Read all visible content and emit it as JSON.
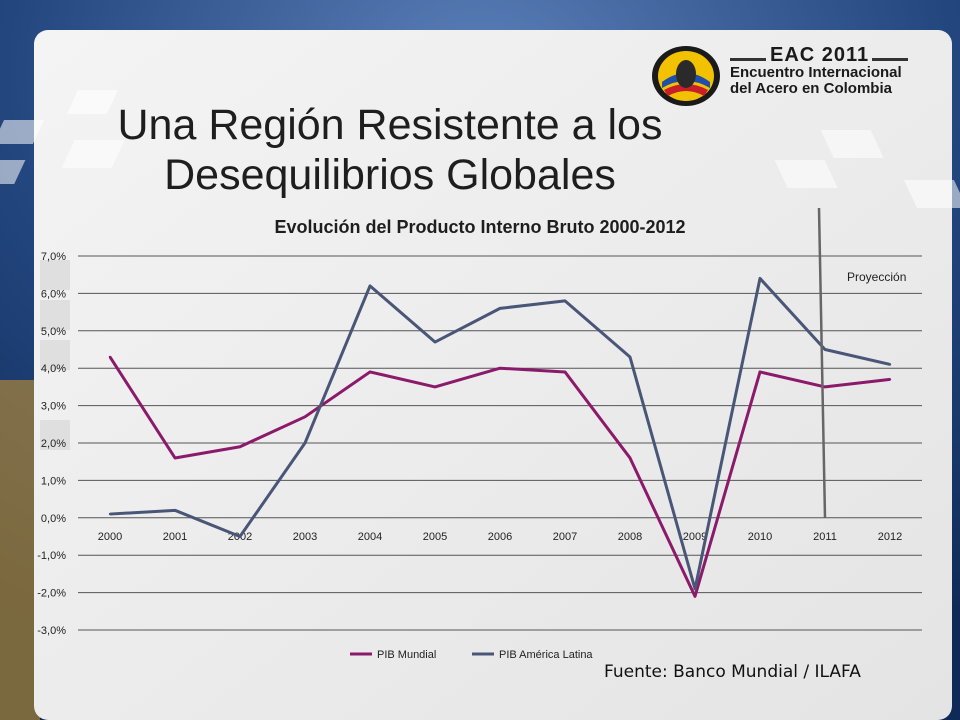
{
  "slide": {
    "title_line1": "Una Región Resistente a los",
    "title_line2": "Desequilibrios Globales",
    "source": "Fuente: Banco Mundial / ILAFA"
  },
  "logo": {
    "line1": "EAC 2011",
    "line2": "Encuentro Internacional",
    "line3": "del Acero en Colombia"
  },
  "colors": {
    "series1": "#8b1a6b",
    "series2": "#4a5677",
    "grid": "#555555",
    "projection_line": "#666666"
  },
  "chart_data": {
    "type": "line",
    "title": "Evolución del Producto Interno Bruto 2000-2012",
    "categories": [
      "2000",
      "2001",
      "2002",
      "2003",
      "2004",
      "2005",
      "2006",
      "2007",
      "2008",
      "2009",
      "2010",
      "2011",
      "2012"
    ],
    "series": [
      {
        "name": "PIB Mundial",
        "values": [
          4.3,
          1.6,
          1.9,
          2.7,
          3.9,
          3.5,
          4.0,
          3.9,
          1.6,
          -2.1,
          3.9,
          3.5,
          3.7
        ]
      },
      {
        "name": "PIB América Latina",
        "values": [
          0.1,
          0.2,
          -0.5,
          2.0,
          6.2,
          4.7,
          5.6,
          5.8,
          4.3,
          -1.9,
          6.4,
          4.5,
          4.1
        ]
      }
    ],
    "yticks": [
      "7,0%",
      "6,0%",
      "5,0%",
      "4,0%",
      "3,0%",
      "2,0%",
      "1,0%",
      "0,0%",
      "-1,0%",
      "-2,0%",
      "-3,0%"
    ],
    "ylim": [
      -3,
      7
    ],
    "grid": true,
    "legend": "bottom",
    "annotation": "Proyección"
  }
}
